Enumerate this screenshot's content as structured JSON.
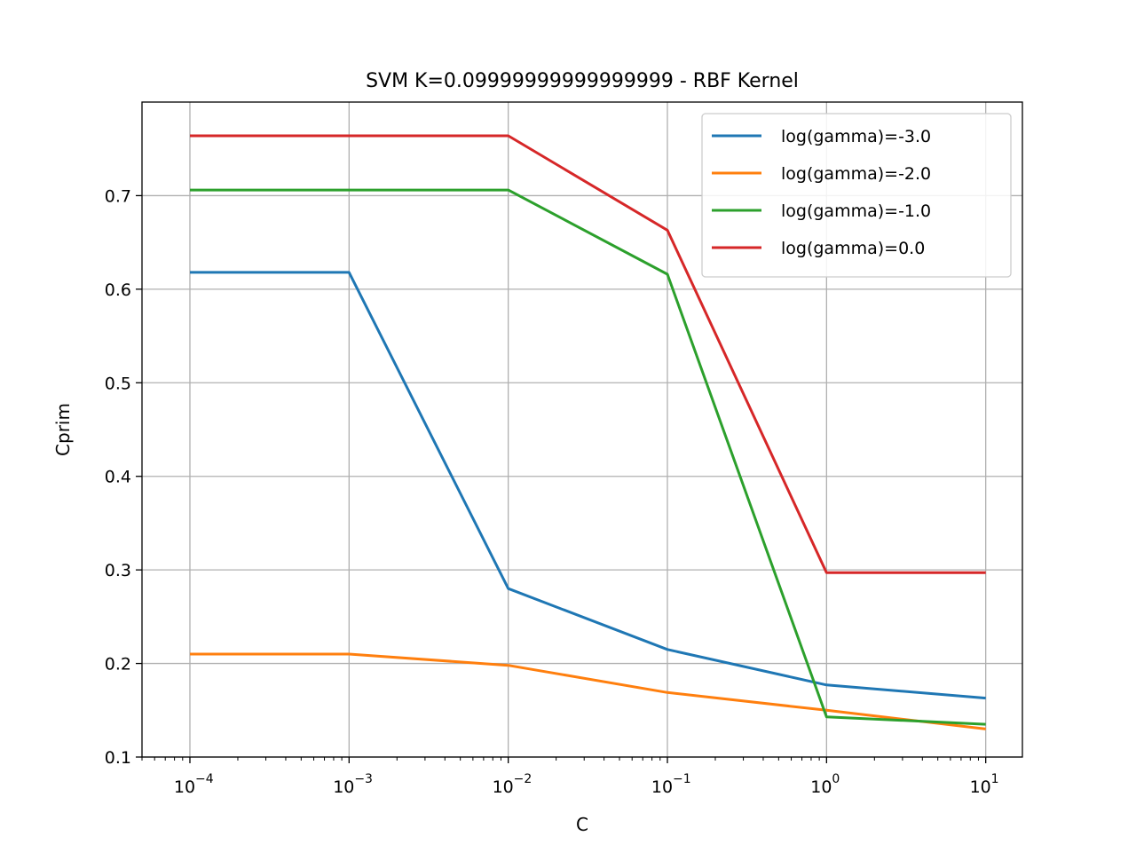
{
  "chart_data": {
    "type": "line",
    "title": "SVM K=0.09999999999999999 - RBF Kernel",
    "xlabel": "C",
    "ylabel": "Cprim",
    "x_scale": "log",
    "xlim": [
      5e-05,
      17
    ],
    "ylim": [
      0.1,
      0.8
    ],
    "x": [
      0.0001,
      0.001,
      0.01,
      0.1,
      1,
      10
    ],
    "x_ticks": [
      {
        "value": 0.0001,
        "base": "10",
        "exp": "−4"
      },
      {
        "value": 0.001,
        "base": "10",
        "exp": "−3"
      },
      {
        "value": 0.01,
        "base": "10",
        "exp": "−2"
      },
      {
        "value": 0.1,
        "base": "10",
        "exp": "−1"
      },
      {
        "value": 1,
        "base": "10",
        "exp": "0"
      },
      {
        "value": 10,
        "base": "10",
        "exp": "1"
      }
    ],
    "y_ticks": [
      {
        "value": 0.1,
        "label": "0.1"
      },
      {
        "value": 0.2,
        "label": "0.2"
      },
      {
        "value": 0.3,
        "label": "0.3"
      },
      {
        "value": 0.4,
        "label": "0.4"
      },
      {
        "value": 0.5,
        "label": "0.5"
      },
      {
        "value": 0.6,
        "label": "0.6"
      },
      {
        "value": 0.7,
        "label": "0.7"
      }
    ],
    "grid": true,
    "legend_position": "top-right",
    "series": [
      {
        "name": "log(gamma)=-3.0",
        "color": "#1f77b4",
        "values": [
          0.618,
          0.618,
          0.28,
          0.215,
          0.177,
          0.163
        ]
      },
      {
        "name": "log(gamma)=-2.0",
        "color": "#ff7f0e",
        "values": [
          0.21,
          0.21,
          0.198,
          0.169,
          0.15,
          0.13
        ]
      },
      {
        "name": "log(gamma)=-1.0",
        "color": "#2ca02c",
        "values": [
          0.706,
          0.706,
          0.706,
          0.616,
          0.143,
          0.135
        ]
      },
      {
        "name": "log(gamma)=0.0",
        "color": "#d62728",
        "values": [
          0.764,
          0.764,
          0.764,
          0.663,
          0.297,
          0.297
        ]
      }
    ]
  }
}
